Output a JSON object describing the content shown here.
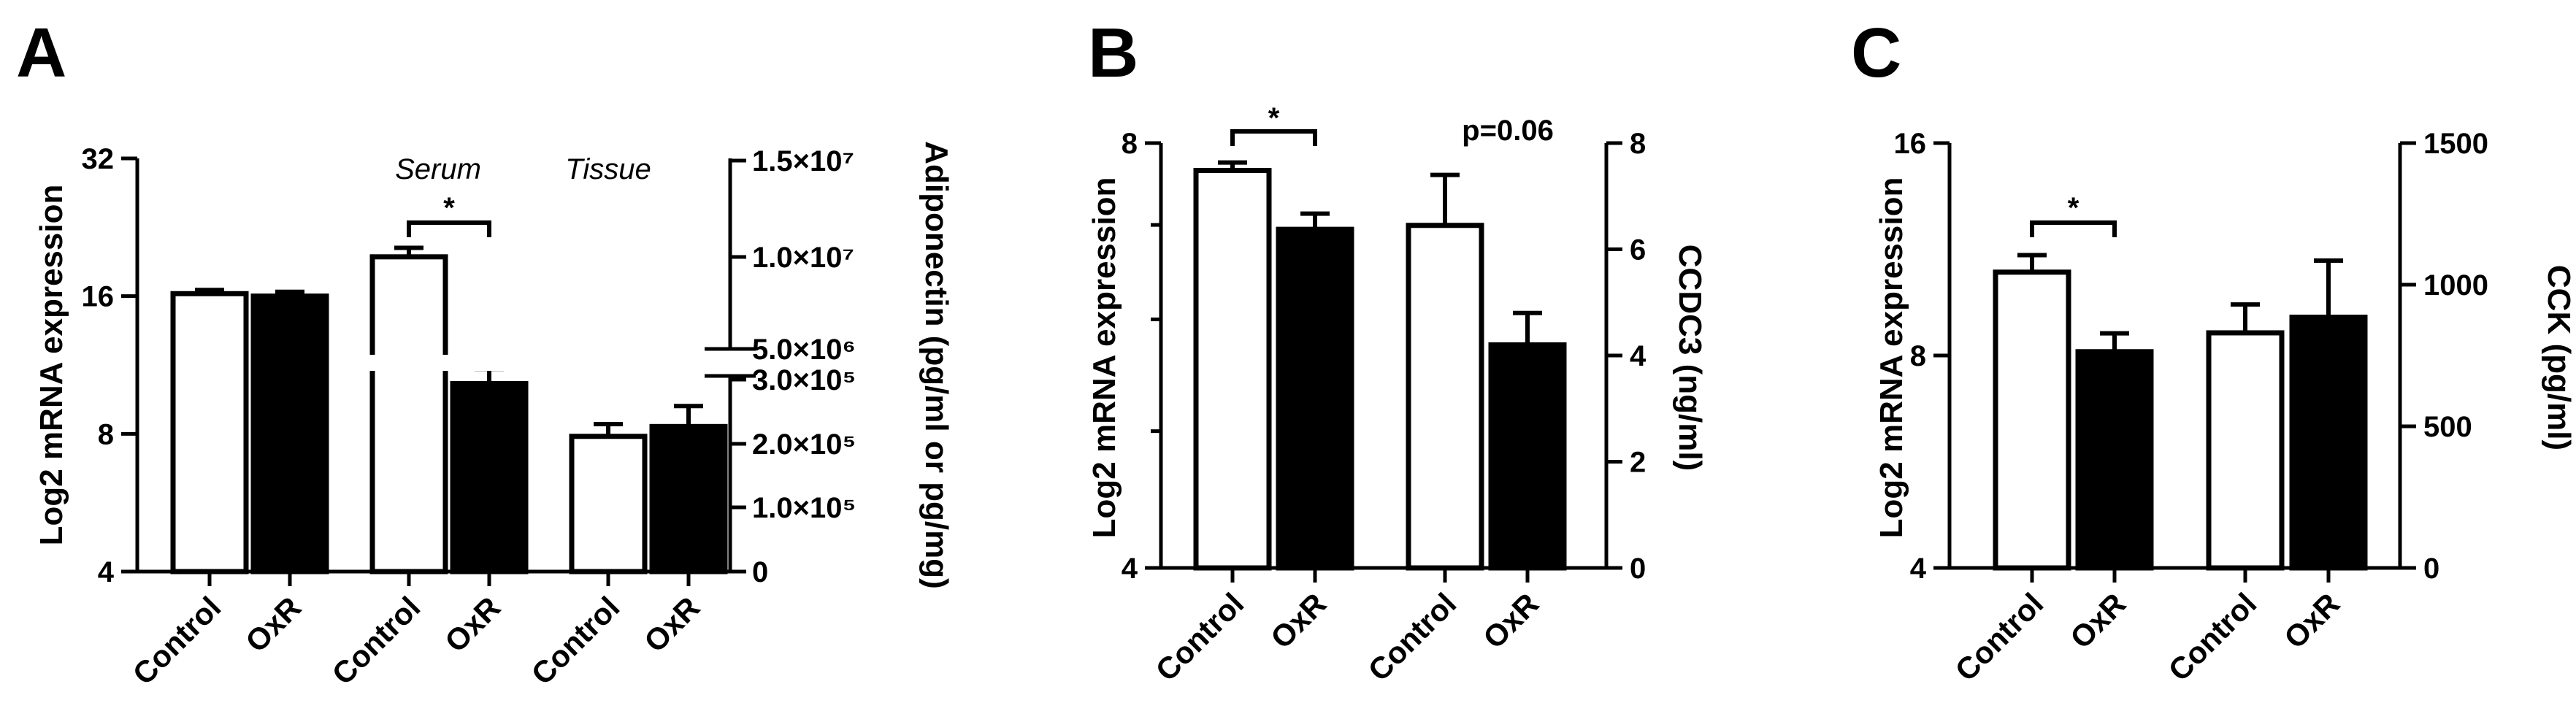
{
  "colors": {
    "control": "#ffffff",
    "oxr": "#000000",
    "stroke": "#000000"
  },
  "chart_data": [
    {
      "panel": "A",
      "type": "bar",
      "ylabel": "Log2 mRNA expression",
      "y2label": "Adiponectin (pg/ml or pg/mg)",
      "y_scale": "log2",
      "ylim": [
        4,
        32
      ],
      "yticks": [
        "4",
        "8",
        "16",
        "32"
      ],
      "y2_ticks_upper": [
        "5.0×10⁶",
        "1.0×10⁷",
        "1.5×10⁷"
      ],
      "y2_ticks_lower": [
        "0",
        "1.0×10⁵",
        "2.0×10⁵",
        "3.0×10⁵"
      ],
      "group_labels": [
        "",
        "Serum",
        "Tissue"
      ],
      "categories": [
        "Control",
        "OxR",
        "Control",
        "OxR",
        "Control",
        "OxR"
      ],
      "values": [
        16.2,
        16.0,
        19.5,
        10.3,
        7.9,
        8.3
      ],
      "errors": [
        0.3,
        0.35,
        0.9,
        0.8,
        0.5,
        0.9
      ],
      "value_units": [
        "Log2 mRNA",
        "Log2 mRNA",
        "pg/ml",
        "pg/ml",
        "pg/mg",
        "pg/mg"
      ],
      "annotations": [
        {
          "text": "*",
          "between": [
            2,
            3
          ]
        }
      ]
    },
    {
      "panel": "B",
      "type": "bar",
      "ylabel": "Log2 mRNA expression",
      "y2label": "CCDC3 (ng/ml)",
      "y_scale": "log2",
      "ylim": [
        4,
        8
      ],
      "yticks": [
        "4",
        "8"
      ],
      "y2lim": [
        0,
        8
      ],
      "y2ticks": [
        "0",
        "2",
        "4",
        "6",
        "8"
      ],
      "categories": [
        "Control",
        "OxR",
        "Control",
        "OxR"
      ],
      "values": [
        7.65,
        6.95,
        6.45,
        4.2
      ],
      "errors": [
        0.1,
        0.18,
        0.95,
        0.6
      ],
      "axis": [
        "left",
        "left",
        "right",
        "right"
      ],
      "annotations": [
        {
          "text": "*",
          "between": [
            0,
            1
          ]
        },
        {
          "text": "p=0.06",
          "between": [
            2,
            3
          ]
        }
      ]
    },
    {
      "panel": "C",
      "type": "bar",
      "ylabel": "Log2 mRNA expression",
      "y2label": "CCK (pg/ml)",
      "y_scale": "log2",
      "ylim": [
        4,
        16
      ],
      "yticks": [
        "4",
        "8",
        "16"
      ],
      "y2lim": [
        0,
        1500
      ],
      "y2ticks": [
        "0",
        "500",
        "1000",
        "1500"
      ],
      "categories": [
        "Control",
        "OxR",
        "Control",
        "OxR"
      ],
      "values": [
        10.5,
        8.1,
        830,
        885
      ],
      "errors": [
        0.6,
        0.5,
        100,
        200
      ],
      "axis": [
        "left",
        "left",
        "right",
        "right"
      ],
      "annotations": [
        {
          "text": "*",
          "between": [
            0,
            1
          ]
        }
      ]
    }
  ]
}
